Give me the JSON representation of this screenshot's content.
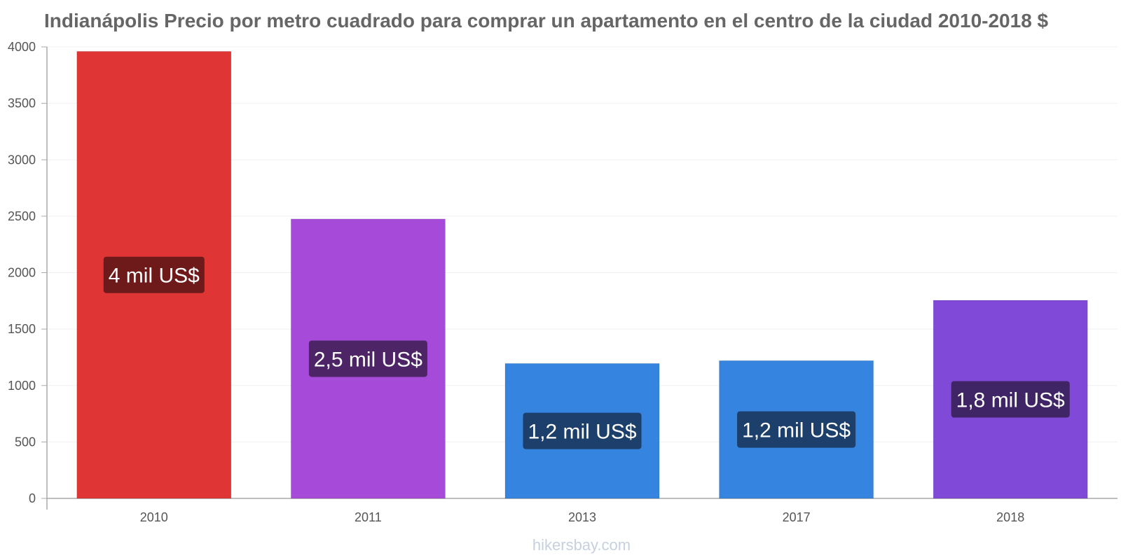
{
  "chart_data": {
    "type": "bar",
    "title": "Indianápolis Precio por metro cuadrado para comprar un apartamento en el centro de la ciudad 2010-2018 $",
    "xlabel": "",
    "ylabel": "",
    "categories": [
      "2010",
      "2011",
      "2013",
      "2017",
      "2018"
    ],
    "values": [
      3960,
      2475,
      1195,
      1220,
      1755
    ],
    "data_labels": [
      "4 mil US$",
      "2,5 mil US$",
      "1,2 mil US$",
      "1,2 mil US$",
      "1,8 mil US$"
    ],
    "colors": [
      "#e03535",
      "#a64bd9",
      "#3584e0",
      "#3584e0",
      "#8049d8"
    ],
    "label_bg_colors": [
      "#6f1a1a",
      "#4d2466",
      "#1c3f6b",
      "#1c3f6b",
      "#3f2466"
    ],
    "ylim": [
      0,
      4000
    ],
    "yticks": [
      0,
      500,
      1000,
      1500,
      2000,
      2500,
      3000,
      3500,
      4000
    ],
    "grid": true,
    "legend": "none"
  },
  "watermark": "hikersbay.com"
}
